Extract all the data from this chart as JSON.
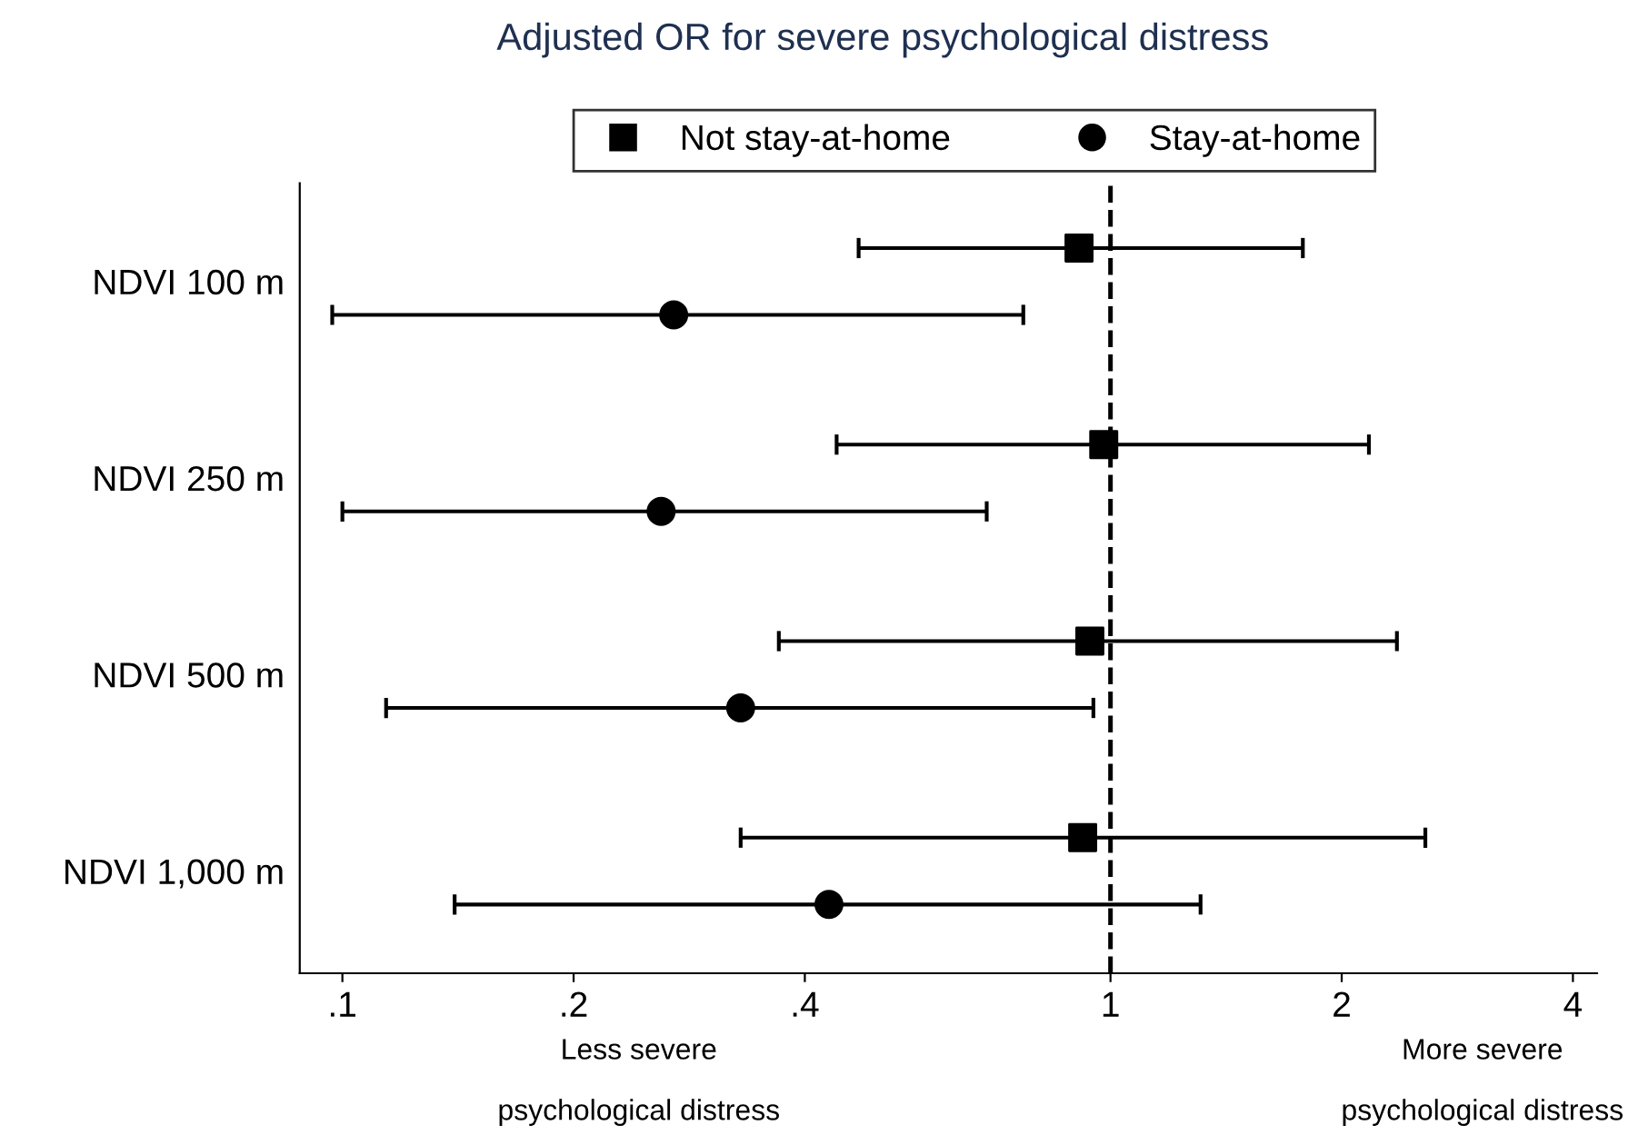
{
  "chart_data": {
    "type": "scatter",
    "orientation": "horizontal",
    "title": "Adjusted OR for severe psychological distress",
    "categories": [
      "NDVI 100 m",
      "NDVI 250 m",
      "NDVI 500 m",
      "NDVI 1,000 m"
    ],
    "series": [
      {
        "name": "Not stay-at-home",
        "color": "#000000",
        "marker": "square",
        "values": [
          0.91,
          0.98,
          0.94,
          0.92
        ],
        "errors": [
          [
            0.47,
            1.78
          ],
          [
            0.44,
            2.17
          ],
          [
            0.37,
            2.36
          ],
          [
            0.33,
            2.57
          ]
        ]
      },
      {
        "name": "Stay-at-home",
        "color": "#000000",
        "marker": "circle",
        "values": [
          0.27,
          0.26,
          0.33,
          0.43
        ],
        "errors": [
          [
            0.097,
            0.77
          ],
          [
            0.1,
            0.69
          ],
          [
            0.114,
            0.95
          ],
          [
            0.14,
            1.31
          ]
        ]
      }
    ],
    "log": "x",
    "xlim": [
      0.088,
      4.3
    ],
    "xticks": [
      {
        "value": 0.1,
        "label": ".1"
      },
      {
        "value": 0.2,
        "label": ".2"
      },
      {
        "value": 0.4,
        "label": ".4"
      },
      1,
      2,
      4
    ],
    "ref_lines": [
      {
        "axis": "x",
        "value": 1,
        "line_style": "dashed",
        "color": "#000000"
      }
    ],
    "legend": "top",
    "grid": false,
    "annotations": [
      "Less severe\npsychological distress",
      "More severe\npsychological distress"
    ]
  }
}
